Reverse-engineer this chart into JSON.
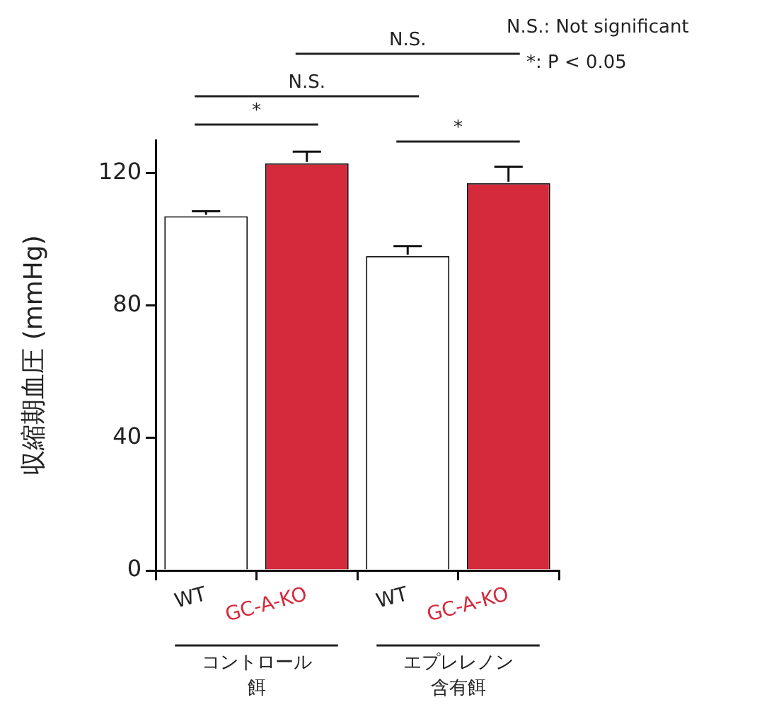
{
  "chart_data": {
    "type": "bar",
    "ylabel": "収縮期血圧 (mmHg)",
    "categories": [
      "WT",
      "GC-A-KO",
      "WT",
      "GC-A-KO"
    ],
    "values": [
      107,
      123,
      95,
      117
    ],
    "errors": [
      1.5,
      3.5,
      3,
      5
    ],
    "colors": [
      "#ffffff",
      "#d42a3c",
      "#ffffff",
      "#d42a3c"
    ],
    "ylim": [
      0,
      130
    ],
    "yticks": [
      0,
      40,
      80,
      120
    ],
    "grid": false,
    "legend": false,
    "annotations": [
      "*",
      "*",
      "N.S.",
      "N.S.",
      "N.S.: Not significant",
      "*: P < 0.05",
      "コントロール餌",
      "エプレレノン含有餌"
    ]
  }
}
